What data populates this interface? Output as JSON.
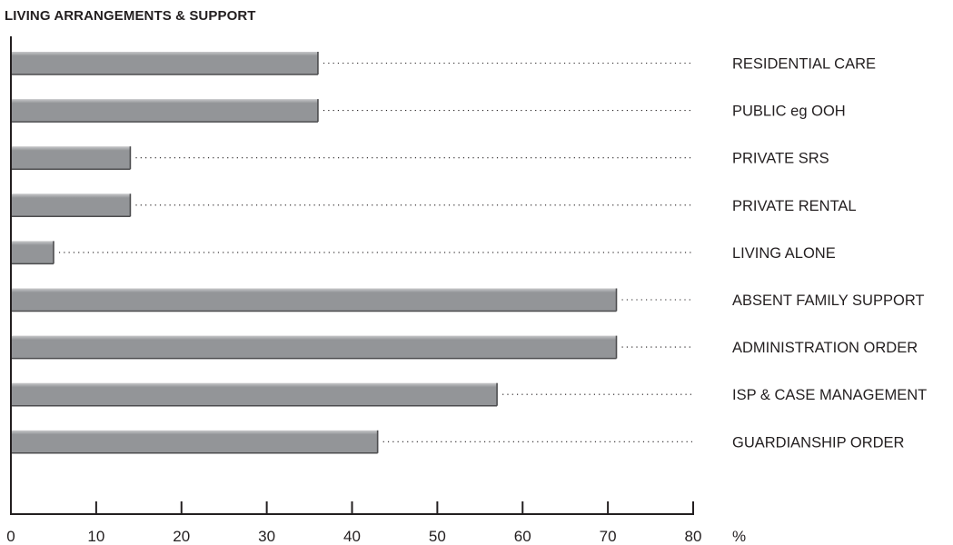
{
  "chart_data": {
    "type": "bar",
    "orientation": "horizontal",
    "title": "LIVING ARRANGEMENTS & SUPPORT",
    "categories": [
      "RESIDENTIAL CARE",
      "PUBLIC eg OOH",
      "PRIVATE SRS",
      "PRIVATE RENTAL",
      "LIVING ALONE",
      "ABSENT FAMILY SUPPORT",
      "ADMINISTRATION ORDER",
      "ISP & CASE MANAGEMENT",
      "GUARDIANSHIP ORDER"
    ],
    "values": [
      36,
      36,
      14,
      14,
      5,
      71,
      71,
      57,
      43
    ],
    "xlim": [
      0,
      80
    ],
    "xticks": [
      0,
      10,
      20,
      30,
      40,
      50,
      60,
      70,
      80
    ],
    "xunit": "%",
    "bar_color": "#939598",
    "grid": false,
    "legend": "none"
  }
}
